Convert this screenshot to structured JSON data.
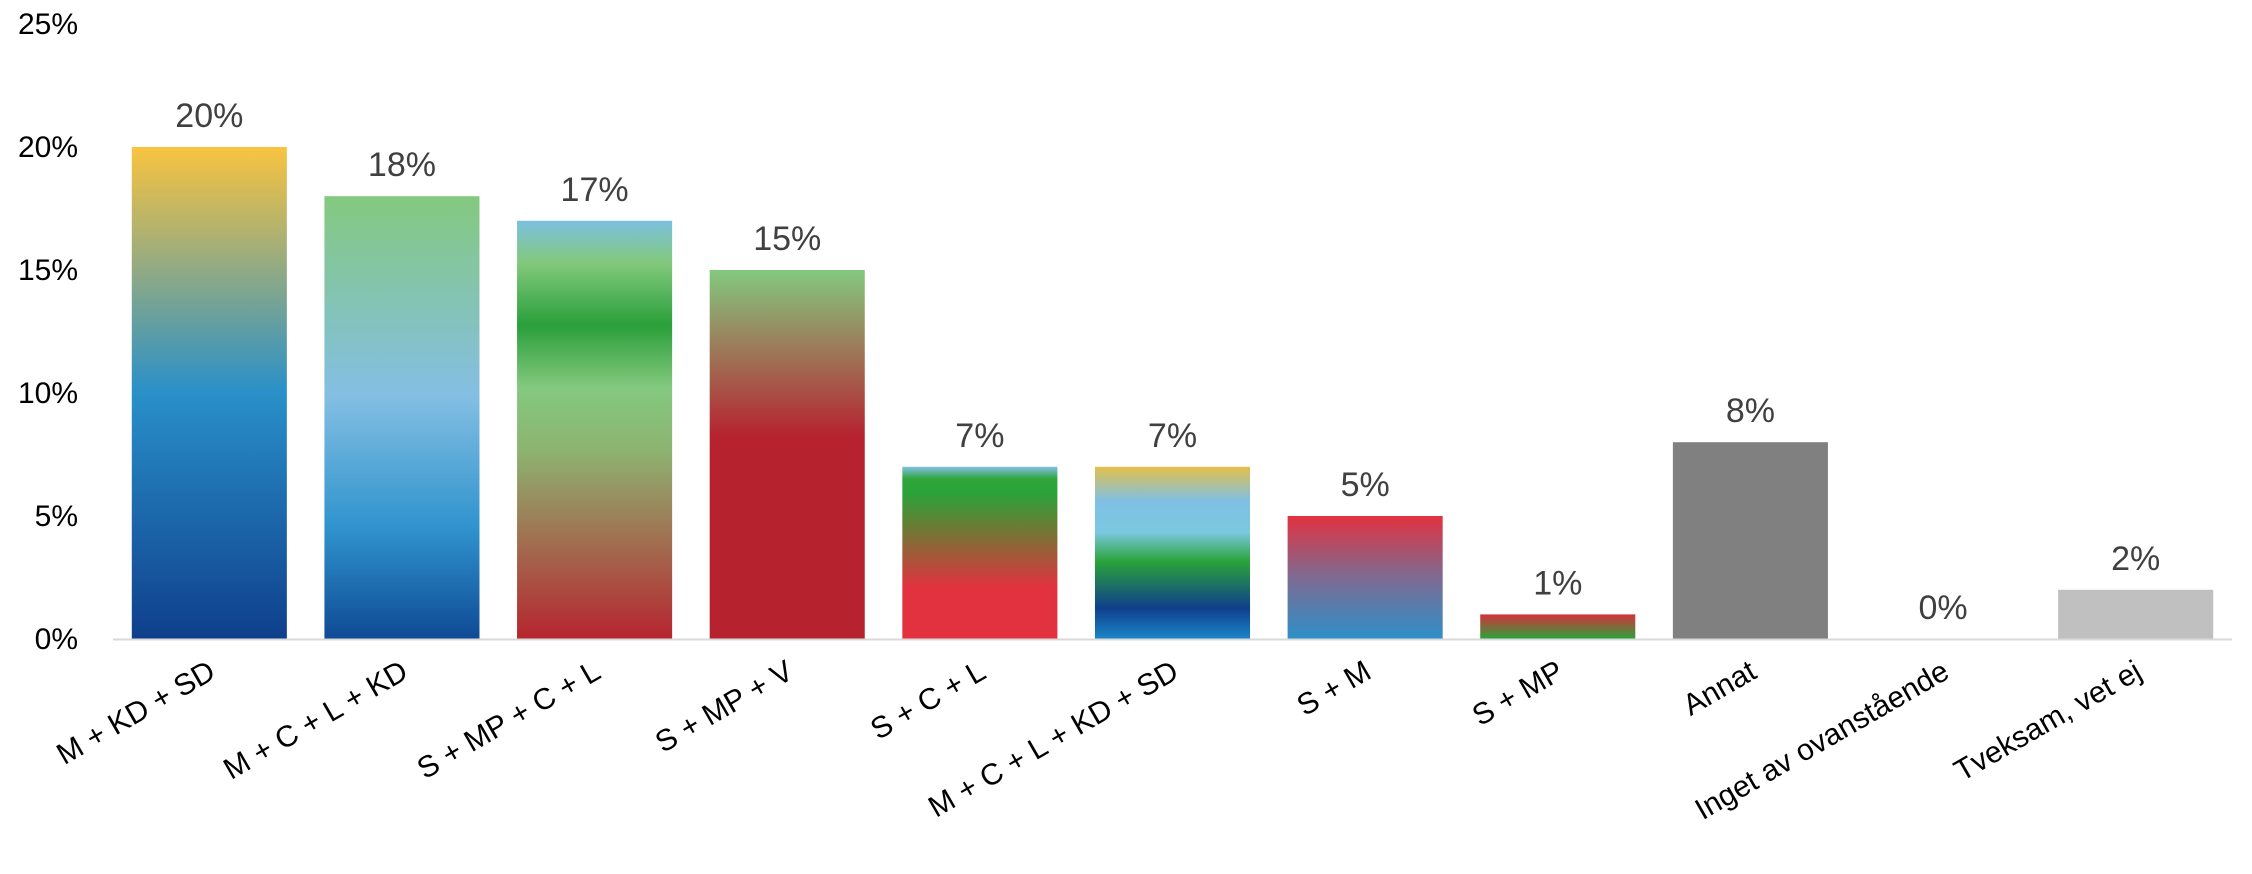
{
  "chart_data": {
    "type": "bar",
    "categories": [
      "M + KD + SD",
      "M + C + L + KD",
      "S + MP + C + L",
      "S + MP + V",
      "S + C + L",
      "M + C + L + KD + SD",
      "S + M",
      "S + MP",
      "Annat",
      "Inget av ovanstående",
      "Tveksam, vet ej"
    ],
    "values": [
      20,
      18,
      17,
      15,
      7,
      7,
      5,
      1,
      8,
      0,
      2
    ],
    "data_labels": [
      "20%",
      "18%",
      "17%",
      "15%",
      "7%",
      "7%",
      "5%",
      "1%",
      "8%",
      "0%",
      "2%"
    ],
    "ylim": [
      0,
      25
    ],
    "y_ticks": [
      0,
      5,
      10,
      15,
      20,
      25
    ],
    "y_tick_labels": [
      "0%",
      "5%",
      "10%",
      "15%",
      "20%",
      "25%"
    ],
    "grid": false,
    "legend": "none",
    "bar_gradients": [
      [
        [
          0,
          "#0f3f8c"
        ],
        [
          0.5,
          "#2990c8"
        ],
        [
          1,
          "#f9c440"
        ]
      ],
      [
        [
          0,
          "#0f4a94"
        ],
        [
          0.25,
          "#2f93cd"
        ],
        [
          0.55,
          "#84bfe3"
        ],
        [
          1,
          "#84c97f"
        ]
      ],
      [
        [
          0,
          "#b6252f"
        ],
        [
          0.45,
          "#8db370"
        ],
        [
          0.6,
          "#84c97f"
        ],
        [
          0.75,
          "#2a9f3a"
        ],
        [
          0.9,
          "#82c97c"
        ],
        [
          1,
          "#7cc0e0"
        ]
      ],
      [
        [
          0,
          "#b6232f"
        ],
        [
          0.55,
          "#b6232f"
        ],
        [
          1,
          "#84c97f"
        ]
      ],
      [
        [
          0,
          "#e2323f"
        ],
        [
          0.3,
          "#e2323f"
        ],
        [
          0.65,
          "#6a7c34"
        ],
        [
          0.85,
          "#2aa33a"
        ],
        [
          0.93,
          "#31a53a"
        ],
        [
          1,
          "#7fc0e5"
        ]
      ],
      [
        [
          0,
          "#1a86c8"
        ],
        [
          0.18,
          "#0f3f8c"
        ],
        [
          0.45,
          "#2aa33a"
        ],
        [
          0.62,
          "#7ac9e0"
        ],
        [
          0.8,
          "#7fc0e5"
        ],
        [
          1,
          "#e3c04a"
        ]
      ],
      [
        [
          0,
          "#2e90c8"
        ],
        [
          0.5,
          "#7e6a92"
        ],
        [
          1,
          "#e2323f"
        ]
      ],
      [
        [
          0,
          "#2aa33a"
        ],
        [
          1,
          "#d7303c"
        ]
      ],
      [
        [
          0,
          "#808080"
        ],
        [
          1,
          "#808080"
        ]
      ],
      [
        [
          0,
          "#808080"
        ],
        [
          1,
          "#808080"
        ]
      ],
      [
        [
          0,
          "#c0c0c0"
        ],
        [
          1,
          "#c0c0c0"
        ]
      ]
    ],
    "axis_color": "#d9d9d9"
  }
}
